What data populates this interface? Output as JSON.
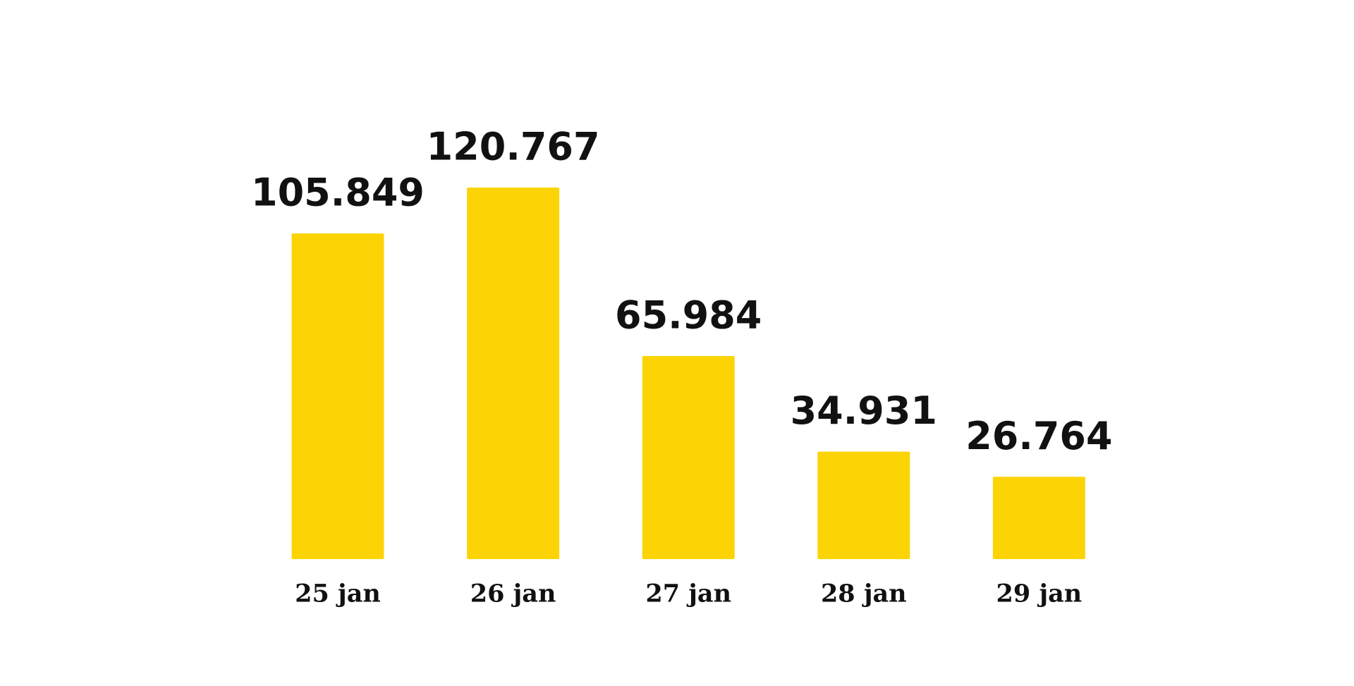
{
  "chart_data": {
    "type": "bar",
    "categories": [
      "25 jan",
      "26 jan",
      "27 jan",
      "28 jan",
      "29 jan"
    ],
    "values": [
      105849,
      120767,
      65984,
      34931,
      26764
    ],
    "value_labels": [
      "105.849",
      "120.767",
      "65.984",
      "34.931",
      "26.764"
    ],
    "color": "#fcd405"
  }
}
